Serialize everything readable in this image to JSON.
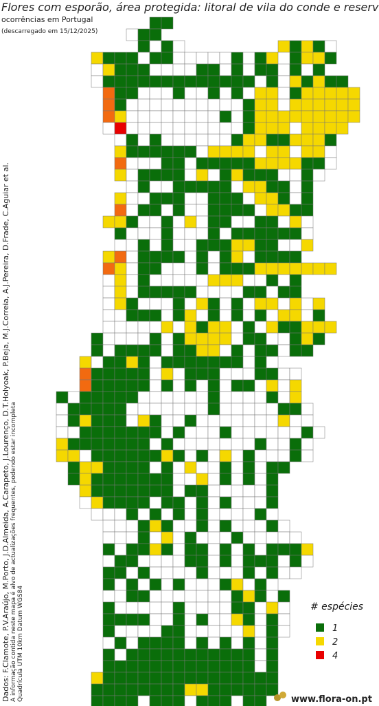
{
  "header": {
    "title": "Flores com esporão, área protegida: litoral de vila do conde e reserva o",
    "subtitle": "ocorrências em Portugal",
    "download_note": "(descarregado em 15/12/2025)"
  },
  "credits": [
    "Dados: F.Clamote, P.V.Araújo, M.Porto, J.D.Almeida, A.Carapeto, J.Lourenço, D.T.Holyoak, P.Beja, M.J.Correia, A.J.Pereira, D.Frade, C.Aguiar et al.",
    "A informação contida neste mapa é alvo de actualizações frequentes, podendo estar incompleta",
    "Quadrícula UTM 10km Datum WGS84"
  ],
  "legend": {
    "title": "# espécies",
    "items": [
      {
        "value": 1,
        "color": "#0a6e0a"
      },
      {
        "value": 2,
        "color": "#f5d800"
      },
      {
        "value": 4,
        "color": "#e80000"
      }
    ]
  },
  "map": {
    "cell_colors": {
      "1": "#0a6e0a",
      "2": "#f5d800",
      "3": "#f26a10",
      "4": "#e80000",
      ".": "#ffffff"
    },
    "rows": [
      "          11",
      "        .11",
      "         1.1.        2121.",
      "     2111.11.....1.12 1221",
      "     .2111....11.1.11.1.1",
      "     .1111111111111.1.21211",
      "      311...1..1.1.22.122222",
      "      31..........122.222222",
      "      32........1.1222222222",
      "      .4..........1222.2222",
      "       .1.1......122112221",
      "       2111111.2222.22.22.",
      "       3...11.11111222211.",
      "       2.1111.2.12111..1.",
      "        .1..11111.2211.1",
      "       2..111..111.221.1",
      "       3.11.1..1111.2211",
      "      221..1.2.11..11.2.",
      "       1...1...1.111111.",
      "       ..1.1..1112211..2",
      "      23.1111.1.12.1111",
      "      32.11...1.1112222222",
      "      .2.1.....222..1.1",
      "      .2.11111....11.11",
      "      .21...1.21.1.22.2.2",
      "      ..111.12.1.1.1.22.1",
      "      .....2.2122.1.211222",
      "     1....1.12222.11..121",
      "     1.1111.1122.1.11.11",
      "    2.1121.1111111.1.",
      "    311111.2.111...11..",
      "    311111.1.1.1.11.2.2",
      "  1.11111......1....1.2",
      "  .11111.......1.....11.",
      "  .12111.21..1.......2..",
      "  ..1111111.1...1......1.",
      "  21111111.1.......1..1.",
      "  22.11111121.1.2.1...1.",
      "   1221111.1.2..1.1.11",
      "   121111111..2.1.1.1",
      "    21111111.11.....1",
      "    .21111.11.1.1...1",
      "     ...1.1.1.1....1.",
      "      ...121..1.1...1.",
      "      ...1.2.1...1.....",
      "      1.1121.11.1.1.1112",
      "      .11....11.1.111.1.",
      "      11.1....1...1.1..",
      "      1.1.1.1...12.1.",
      "      ..11.......121.1",
      "      1.....1....11.2.",
      "      1111..1.1..21.1.",
      "      1....11.....2.1.",
      "      .1.1111.1.1.1.1",
      "      1.11111111111.1",
      "      1111111111111.1",
      "     2111111111111111",
      "     1111111122111111",
      "     1111.111.111.11"
    ]
  },
  "footer": {
    "site": "www.flora-on.pt"
  }
}
